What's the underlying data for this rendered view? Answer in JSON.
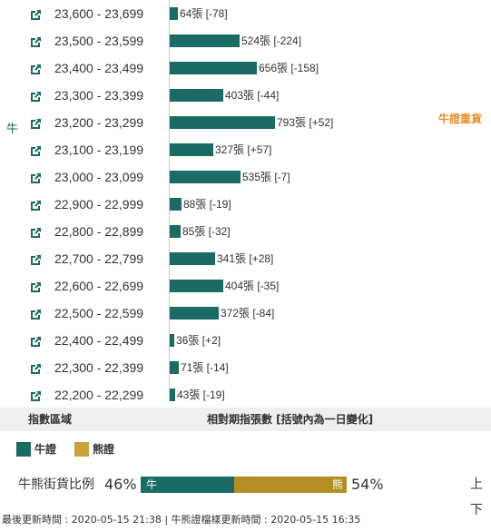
{
  "chart_data": {
    "type": "bar",
    "orientation": "horizontal",
    "categories": [
      "23,600 - 23,699",
      "23,500 - 23,599",
      "23,400 - 23,499",
      "23,300 - 23,399",
      "23,200 - 23,299",
      "23,100 - 23,199",
      "23,000 - 23,099",
      "22,900 - 22,999",
      "22,800 - 22,899",
      "22,700 - 22,799",
      "22,600 - 22,699",
      "22,500 - 22,599",
      "22,400 - 22,499",
      "22,300 - 22,399",
      "22,200 - 22,299"
    ],
    "values": [
      64,
      524,
      656,
      403,
      793,
      327,
      535,
      88,
      85,
      341,
      404,
      372,
      36,
      71,
      43
    ],
    "labels": [
      "64張 [-78]",
      "524張 [-224]",
      "656張 [-158]",
      "403張 [-44]",
      "793張 [+52]",
      "327張 [+57]",
      "535張 [-7]",
      "88張 [-19]",
      "85張 [-32]",
      "341張 [+28]",
      "404張 [-35]",
      "372張 [-84]",
      "36張 [+2]",
      "71張 [-14]",
      "43張 [-19]"
    ],
    "changes": [
      -78,
      -224,
      -158,
      -44,
      52,
      57,
      -7,
      -19,
      -32,
      28,
      -35,
      -84,
      2,
      -14,
      -19
    ],
    "bar_color": "#1a6b63",
    "xlim": [
      0,
      800
    ]
  },
  "side_label": "牛",
  "heavy_label": "牛證重貨",
  "heavy_color": "#e8902a",
  "header": {
    "left": "指數區域",
    "right": "相對期指張數 [括號內為一日變化]"
  },
  "legend": [
    {
      "label": "牛證",
      "color": "#1a6b63"
    },
    {
      "label": "熊證",
      "color": "#c9a33a"
    }
  ],
  "ratio": {
    "label": "牛熊街貨比例",
    "bull_pct_text": "46%",
    "bear_pct_text": "54%",
    "bull_fraction": 0.46,
    "bull_text": "牛",
    "bear_text": "熊",
    "bull_color": "#1a6b63",
    "bear_color": "#b48e22",
    "next_text": "上下"
  },
  "footer": "最後更新時間 : 2020-05-15 21:38   |   牛熊證檔樣更新時間 : 2020-05-15 16:35",
  "icon": "external-link-icon"
}
